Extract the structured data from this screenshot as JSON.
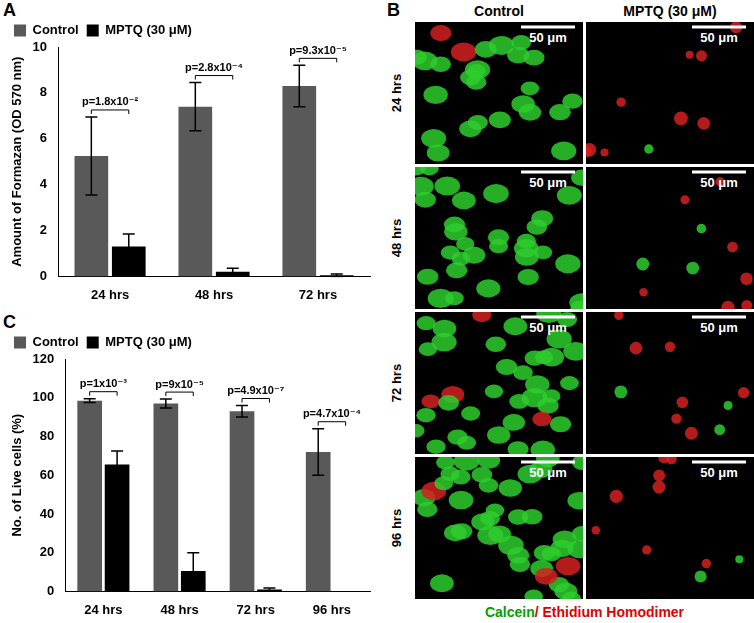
{
  "chart_data": [
    {
      "panel": "A",
      "type": "bar",
      "y_label": "Amount of Formazan (OD 570 nm)",
      "categories": [
        "24 hrs",
        "48 hrs",
        "72 hrs"
      ],
      "series": [
        {
          "name": "Control",
          "color": "#595959",
          "values": [
            5.25,
            7.4,
            8.3
          ],
          "errors": [
            1.7,
            1.05,
            0.9
          ]
        },
        {
          "name": "MPTQ (30 μM)",
          "color": "#000000",
          "values": [
            1.3,
            0.2,
            0.05
          ],
          "errors": [
            0.55,
            0.15,
            0.05
          ]
        }
      ],
      "annotations": [
        "p=1.8x10⁻²",
        "p=2.8x10⁻⁴",
        "p=9.3x10⁻⁵"
      ],
      "ylim": [
        0,
        10
      ],
      "yticks": [
        0,
        2,
        4,
        6,
        8,
        10
      ],
      "grid": false,
      "legend": "upper left"
    },
    {
      "panel": "C",
      "type": "bar",
      "y_label": "No. of Live cells (%)",
      "categories": [
        "24 hrs",
        "48 hrs",
        "72 hrs",
        "96 hrs"
      ],
      "series": [
        {
          "name": "Control",
          "color": "#595959",
          "values": [
            98.5,
            97,
            93,
            72
          ],
          "errors": [
            1,
            2.3,
            3,
            12
          ]
        },
        {
          "name": "MPTQ (30 μM)",
          "color": "#000000",
          "values": [
            65.5,
            10.5,
            1,
            0
          ],
          "errors": [
            7,
            9.5,
            0.8,
            0
          ]
        }
      ],
      "annotations": [
        "p=1x10⁻³",
        "p=9x10⁻⁵",
        "p=4.9x10⁻⁷",
        "p=4.7x10⁻⁴"
      ],
      "ylim": [
        0,
        120
      ],
      "yticks": [
        0,
        20,
        40,
        60,
        80,
        100,
        120
      ],
      "grid": false,
      "legend": "upper left"
    }
  ],
  "image_panel": {
    "panel": "B",
    "columns": [
      "Control",
      "MPTQ (30 μM)"
    ],
    "rows": [
      "24 hrs",
      "48 hrs",
      "72 hrs",
      "96 hrs"
    ],
    "scale_bar": "50 μm",
    "caption": [
      {
        "text": "Calcein",
        "color": "#00a000"
      },
      {
        "text": "/ Ethidium Homodimer",
        "color": "#e00000"
      }
    ]
  }
}
